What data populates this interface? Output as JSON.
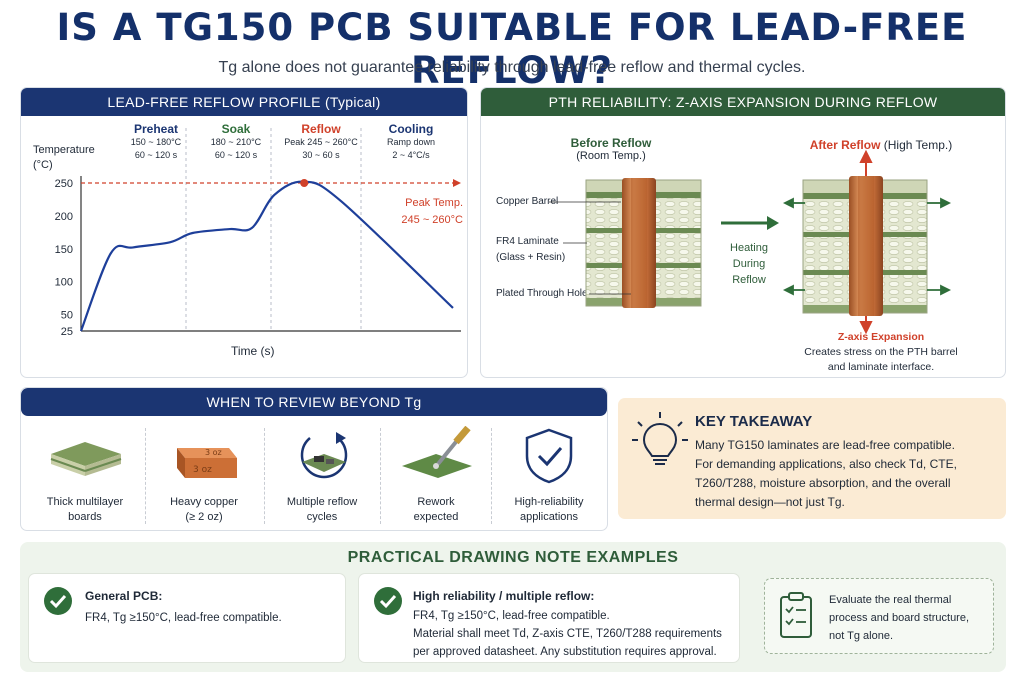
{
  "title": "IS A TG150 PCB SUITABLE FOR LEAD-FREE REFLOW?",
  "subtitle": "Tg alone does not guarantee reliability through lead-free reflow and thermal cycles.",
  "reflow_panel": {
    "header": "LEAD-FREE REFLOW PROFILE (Typical)",
    "y_label_1": "Temperature",
    "y_label_2": "(°C)",
    "x_label": "Time (s)",
    "y_ticks": [
      "250",
      "200",
      "150",
      "100",
      "50",
      "25"
    ],
    "phases": [
      {
        "name": "Preheat",
        "line1": "150 ~ 180°C",
        "line2": "60 ~ 120 s",
        "color": "#1b3572"
      },
      {
        "name": "Soak",
        "line1": "180 ~ 210°C",
        "line2": "60 ~ 120 s",
        "color": "#2f6e3a"
      },
      {
        "name": "Reflow",
        "line1": "Peak 245 ~ 260°C",
        "line2": "30 ~ 60 s",
        "color": "#d0412a"
      },
      {
        "name": "Cooling",
        "line1": "Ramp down",
        "line2": "2 ~ 4°C/s",
        "color": "#1b3572"
      }
    ],
    "peak_label_1": "Peak Temp.",
    "peak_label_2": "245 ~ 260°C"
  },
  "chart_data": {
    "type": "line",
    "title": "LEAD-FREE REFLOW PROFILE (Typical)",
    "xlabel": "Time (s)",
    "ylabel": "Temperature (°C)",
    "ylim": [
      25,
      250
    ],
    "y_ticks": [
      25,
      50,
      100,
      150,
      200,
      250
    ],
    "reference_line": {
      "y": 250,
      "label": "Peak Temp. 245 ~ 260°C"
    },
    "series": [
      {
        "x": [
          0,
          8,
          14,
          24,
          30,
          40,
          46,
          52,
          60,
          70,
          100
        ],
        "y": [
          25,
          143,
          152,
          160,
          174,
          180,
          182,
          232,
          252,
          222,
          60
        ]
      }
    ]
  },
  "pth_panel": {
    "header": "PTH RELIABILITY: Z-AXIS EXPANSION DURING REFLOW",
    "before_title": "Before Reflow",
    "before_sub": "(Room Temp.)",
    "after_title": "After Reflow",
    "after_sub": "(High Temp.)",
    "label_copper": "Copper Barrel",
    "label_fr4_1": "FR4 Laminate",
    "label_fr4_2": "(Glass + Resin)",
    "label_pth": "Plated Through Hole",
    "arrow_1": "Heating",
    "arrow_2": "During",
    "arrow_3": "Reflow",
    "z_title": "Z-axis Expansion",
    "z_line1": "Creates stress on the PTH barrel",
    "z_line2": "and laminate interface."
  },
  "review_panel": {
    "header": "WHEN TO REVIEW BEYOND Tg",
    "items": [
      {
        "line1": "Thick multilayer",
        "line2": "boards"
      },
      {
        "line1": "Heavy copper",
        "line2": "(≥ 2 oz)"
      },
      {
        "line1": "Multiple reflow",
        "line2": "cycles"
      },
      {
        "line1": "Rework",
        "line2": "expected"
      },
      {
        "line1": "High-reliability",
        "line2": "applications"
      }
    ],
    "copper_text_1": "3 oz",
    "copper_text_2": "3 oz"
  },
  "takeaway": {
    "title": "KEY TAKEAWAY",
    "line1": "Many TG150 laminates are lead-free compatible.",
    "line2": "For demanding applications, also check Td, CTE,",
    "line3": "T260/T288, moisture absorption, and the overall",
    "line4": "thermal design—not just Tg."
  },
  "notes": {
    "header": "PRACTICAL DRAWING NOTE EXAMPLES",
    "general_title": "General PCB:",
    "general_body": "FR4, Tg ≥150°C, lead-free compatible.",
    "high_title": "High reliability / multiple reflow:",
    "high_line1": "FR4, Tg ≥150°C, lead-free compatible.",
    "high_line2": "Material shall meet Td, Z-axis CTE, T260/T288 requirements",
    "high_line3": "per approved datasheet. Any substitution requires approval.",
    "eval_line1": "Evaluate the real thermal",
    "eval_line2": "process and board structure,",
    "eval_line3": "not Tg alone."
  },
  "colors": {
    "navy": "#1b3572",
    "green": "#2f5d3a",
    "red": "#d0412a",
    "copper": "#c8703a",
    "takeaway_bg": "#fbebd4",
    "notes_bg": "#eef4ec"
  }
}
